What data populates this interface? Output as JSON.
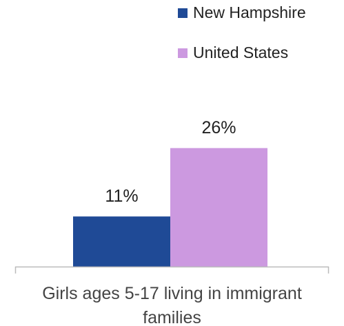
{
  "chart_data": {
    "type": "bar",
    "categories": [
      "Girls ages 5-17 living in immigrant families"
    ],
    "series": [
      {
        "name": "New Hampshire",
        "color": "#1f4a96",
        "values": [
          11
        ],
        "value_labels": [
          "11%"
        ]
      },
      {
        "name": "United States",
        "color": "#cc99e0",
        "values": [
          26
        ],
        "value_labels": [
          "26%"
        ]
      }
    ]
  }
}
